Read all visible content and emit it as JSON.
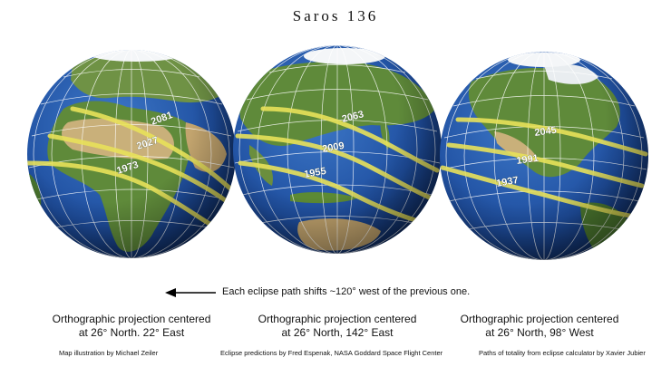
{
  "title": "Saros 136",
  "globes": [
    {
      "id": "left",
      "paths": [
        {
          "year": "2081"
        },
        {
          "year": "2027"
        },
        {
          "year": "1973"
        }
      ],
      "caption_line1": "Orthographic projection centered",
      "caption_line2": "at 26° North. 22° East"
    },
    {
      "id": "middle",
      "paths": [
        {
          "year": "2063"
        },
        {
          "year": "2009"
        },
        {
          "year": "1955"
        }
      ],
      "caption_line1": "Orthographic projection centered",
      "caption_line2": "at 26° North, 142° East"
    },
    {
      "id": "right",
      "paths": [
        {
          "year": "2045"
        },
        {
          "year": "1991"
        },
        {
          "year": "1937"
        }
      ],
      "caption_line1": "Orthographic projection centered",
      "caption_line2": "at 26° North, 98° West"
    }
  ],
  "shift_note": "Each eclipse path shifts ~120° west of the previous one.",
  "credits": {
    "illustration": "Map illustration by Michael Zeiler",
    "predictions": "Eclipse predictions by Fred Espenak, NASA Goddard Space Flight Center",
    "paths": "Paths of totality from eclipse calculator by Xavier Jubier"
  },
  "colors": {
    "ocean": "#1f4fa0",
    "land": "#5f8a3a",
    "desert": "#c9b07a",
    "ice": "#f4f6f8",
    "eclipse_path": "#e8e15a",
    "graticule": "#ffffff"
  }
}
